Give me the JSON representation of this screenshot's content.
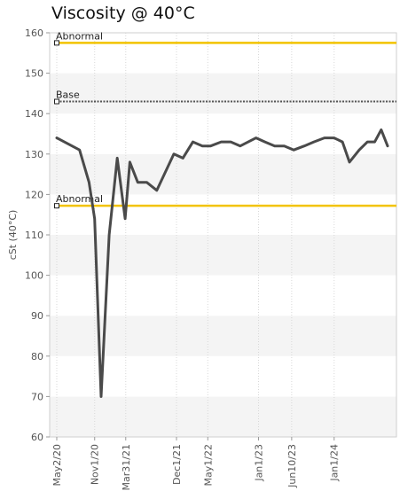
{
  "chart_data": {
    "type": "line",
    "title": "Viscosity @ 40°C",
    "ylabel": "cSt (40°C)",
    "xlabel": "",
    "ylim": [
      60,
      160
    ],
    "yticks": [
      60,
      70,
      80,
      90,
      100,
      110,
      120,
      130,
      140,
      150,
      160
    ],
    "xlim": [
      "2020-05-02",
      "2024-09-15"
    ],
    "xticks": [
      {
        "label": "May2/20",
        "date": "2020-05-02"
      },
      {
        "label": "Nov1/20",
        "date": "2020-11-01"
      },
      {
        "label": "Mar31/21",
        "date": "2021-03-31"
      },
      {
        "label": "Dec1/21",
        "date": "2021-12-01"
      },
      {
        "label": "May1/22",
        "date": "2022-05-01"
      },
      {
        "label": "Jan1/23",
        "date": "2023-01-01"
      },
      {
        "label": "Jun10/23",
        "date": "2023-06-10"
      },
      {
        "label": "Jan1/24",
        "date": "2024-01-01"
      }
    ],
    "grid": true,
    "reference_lines": [
      {
        "label": "Abnormal",
        "value": 157.5,
        "color": "#f2c300",
        "style": "solid"
      },
      {
        "label": "Base",
        "value": 143,
        "color": "#555555",
        "style": "dotted"
      },
      {
        "label": "Abnormal",
        "value": 117.2,
        "color": "#f2c300",
        "style": "solid"
      }
    ],
    "series": [
      {
        "color": "#4a4a4a",
        "points": [
          {
            "x": "2020-05-02",
            "y": 134
          },
          {
            "x": "2020-08-20",
            "y": 131
          },
          {
            "x": "2020-10-05",
            "y": 123
          },
          {
            "x": "2020-11-01",
            "y": 114
          },
          {
            "x": "2020-12-02",
            "y": 70
          },
          {
            "x": "2021-01-10",
            "y": 110
          },
          {
            "x": "2021-02-18",
            "y": 129
          },
          {
            "x": "2021-03-28",
            "y": 114
          },
          {
            "x": "2021-04-20",
            "y": 128
          },
          {
            "x": "2021-05-28",
            "y": 123
          },
          {
            "x": "2021-07-10",
            "y": 123
          },
          {
            "x": "2021-08-28",
            "y": 121
          },
          {
            "x": "2021-11-18",
            "y": 130
          },
          {
            "x": "2022-01-01",
            "y": 129
          },
          {
            "x": "2022-02-18",
            "y": 133
          },
          {
            "x": "2022-04-05",
            "y": 132
          },
          {
            "x": "2022-05-15",
            "y": 132
          },
          {
            "x": "2022-07-05",
            "y": 133
          },
          {
            "x": "2022-08-20",
            "y": 133
          },
          {
            "x": "2022-10-05",
            "y": 132
          },
          {
            "x": "2022-12-20",
            "y": 134
          },
          {
            "x": "2023-02-01",
            "y": 133
          },
          {
            "x": "2023-03-20",
            "y": 132
          },
          {
            "x": "2023-05-05",
            "y": 132
          },
          {
            "x": "2023-06-20",
            "y": 131
          },
          {
            "x": "2023-08-10",
            "y": 132
          },
          {
            "x": "2023-09-25",
            "y": 133
          },
          {
            "x": "2023-11-15",
            "y": 134
          },
          {
            "x": "2024-01-01",
            "y": 134
          },
          {
            "x": "2024-02-10",
            "y": 133
          },
          {
            "x": "2024-03-15",
            "y": 128
          },
          {
            "x": "2024-05-01",
            "y": 131
          },
          {
            "x": "2024-06-10",
            "y": 133
          },
          {
            "x": "2024-07-15",
            "y": 133
          },
          {
            "x": "2024-08-15",
            "y": 136
          },
          {
            "x": "2024-09-15",
            "y": 132
          }
        ]
      }
    ]
  }
}
